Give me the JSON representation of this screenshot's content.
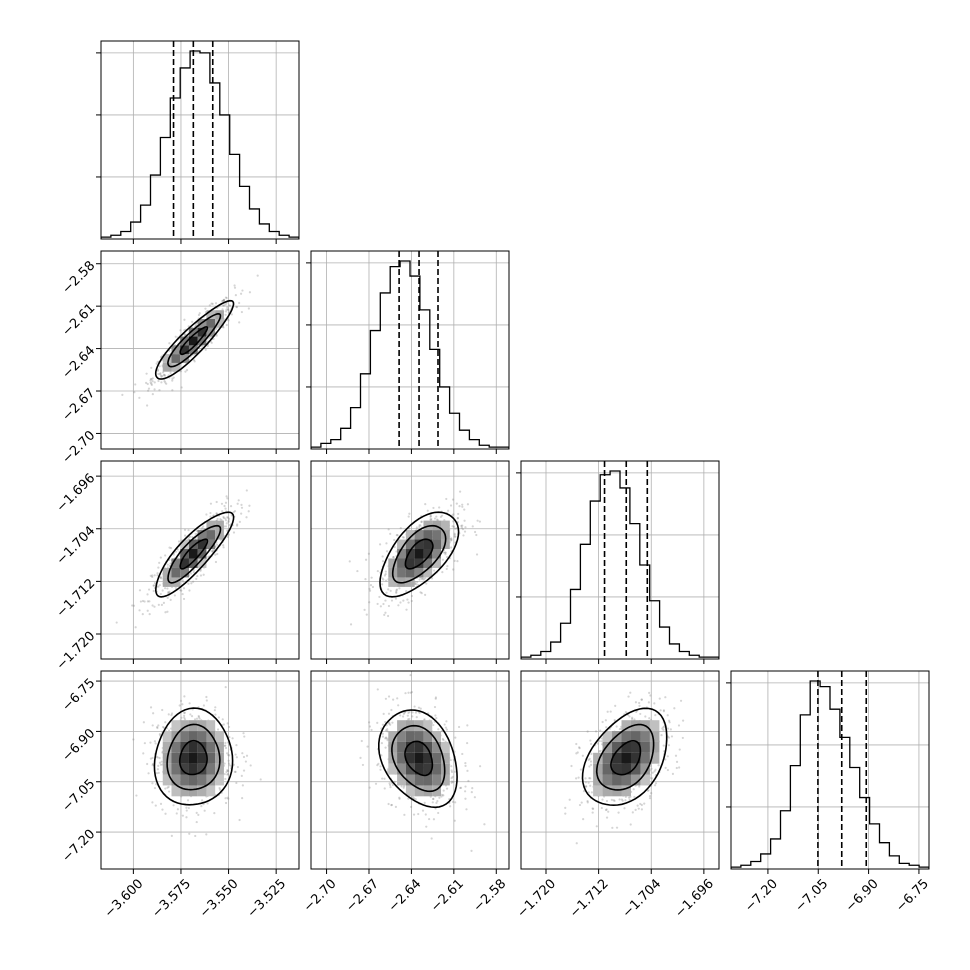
{
  "chart_data": {
    "type": "corner",
    "title": "",
    "parameters": [
      {
        "ticks": [
          -3.6,
          -3.575,
          -3.55,
          -3.525
        ],
        "tick_labels": [
          "−3.600",
          "−3.575",
          "−3.550",
          "−3.525"
        ],
        "range": [
          -3.617,
          -3.513
        ],
        "quantiles": [
          -3.5789,
          -3.5685,
          -3.5583
        ],
        "mean": -3.5685,
        "sd": 0.0102
      },
      {
        "ticks": [
          -2.7,
          -2.67,
          -2.64,
          -2.61,
          -2.58
        ],
        "tick_labels": [
          "−2.70",
          "−2.67",
          "−2.64",
          "−2.61",
          "−2.58"
        ],
        "range": [
          -2.711,
          -2.571
        ],
        "quantiles": [
          -2.6487,
          -2.6346,
          -2.6212
        ],
        "mean": -2.6346,
        "sd": 0.0138
      },
      {
        "ticks": [
          -1.72,
          -1.712,
          -1.704,
          -1.696
        ],
        "tick_labels": [
          "−1.720",
          "−1.712",
          "−1.704",
          "−1.696"
        ],
        "range": [
          -1.7238,
          -1.6937
        ],
        "quantiles": [
          -1.7111,
          -1.7078,
          -1.7046
        ],
        "mean": -1.7078,
        "sd": 0.0032
      },
      {
        "ticks": [
          -7.2,
          -7.05,
          -6.9,
          -6.75
        ],
        "tick_labels": [
          "−7.20",
          "−7.05",
          "−6.90",
          "−6.75"
        ],
        "range": [
          -7.31,
          -6.72
        ],
        "quantiles": [
          -7.051,
          -6.98,
          -6.907
        ],
        "mean": -6.98,
        "sd": 0.072
      }
    ],
    "histograms": [
      [
        1,
        2,
        4,
        9,
        18,
        34,
        54,
        75,
        91,
        100,
        99,
        83,
        66,
        45,
        28,
        16,
        8,
        4,
        2,
        1
      ],
      [
        1,
        3,
        5,
        11,
        22,
        40,
        63,
        83,
        97,
        100,
        92,
        74,
        53,
        33,
        19,
        10,
        5,
        2,
        1,
        1
      ],
      [
        1,
        2,
        4,
        9,
        19,
        37,
        61,
        84,
        98,
        100,
        91,
        72,
        50,
        31,
        17,
        8,
        4,
        2,
        1,
        1
      ],
      [
        1,
        2,
        4,
        8,
        16,
        31,
        55,
        82,
        100,
        97,
        85,
        70,
        54,
        38,
        24,
        14,
        7,
        3,
        2,
        1
      ]
    ],
    "correlations": {
      "1-0": 0.9,
      "2-0": 0.85,
      "2-1": 0.6,
      "3-0": 0.05,
      "3-1": -0.3,
      "3-2": 0.4
    },
    "grid": true,
    "colors": {
      "points": "#888888",
      "hist": "#000000",
      "density": "#000000"
    }
  }
}
